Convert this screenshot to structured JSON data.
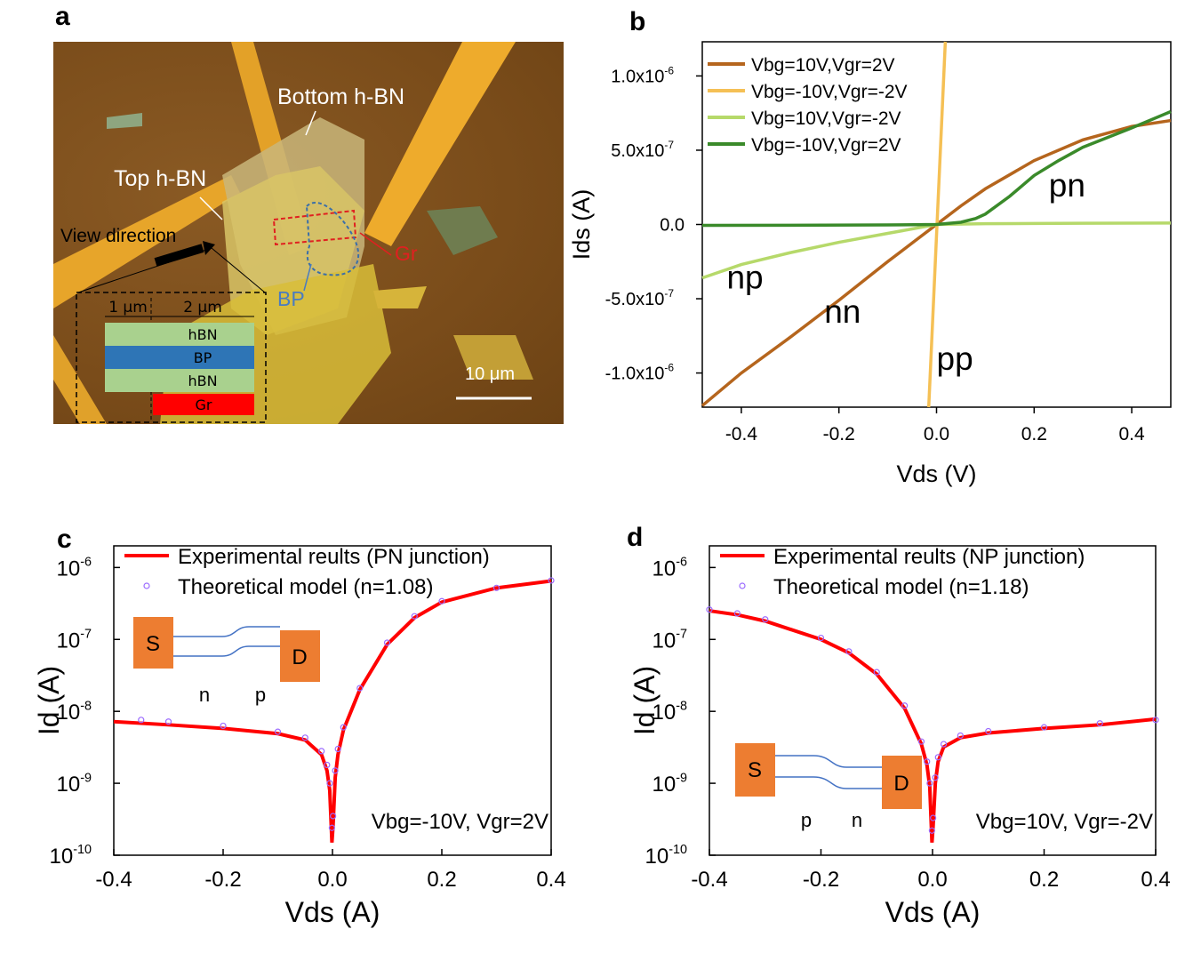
{
  "panels": {
    "a": "a",
    "b": "b",
    "c": "c",
    "d": "d"
  },
  "panel_a": {
    "labels": {
      "bottom_hbn": "Bottom h-BN",
      "top_hbn": "Top h-BN",
      "view_direction": "View direction",
      "gr": "Gr",
      "bp": "BP",
      "scale": "10 μm"
    },
    "schematic": {
      "dim1": "1 μm",
      "dim2": "2 μm",
      "layer1": "hBN",
      "layer2": "BP",
      "layer3": "hBN",
      "layer4": "Gr"
    },
    "colors": {
      "hbn": "#a9d18e",
      "bp": "#2e75b6",
      "gr": "#ff0000"
    }
  },
  "chart_data": [
    {
      "id": "b",
      "type": "line",
      "xlabel": "Vds (V)",
      "ylabel": "Ids (A)",
      "xlim": [
        -0.48,
        0.48
      ],
      "ylim": [
        -1.23e-06,
        1.23e-06
      ],
      "xticks": [
        -0.4,
        -0.2,
        0.0,
        0.2,
        0.4
      ],
      "xtick_labels": [
        "-0.4",
        "-0.2",
        "0.0",
        "0.2",
        "0.4"
      ],
      "yticks": [
        -1e-06,
        -5e-07,
        0,
        5e-07,
        1e-06
      ],
      "ytick_mantissa": [
        "-1.0x10",
        "-5.0x10",
        "0.0",
        "5.0x10",
        "1.0x10"
      ],
      "ytick_exp": [
        "-6",
        "-7",
        "",
        "-7",
        "-6"
      ],
      "series": [
        {
          "name": "Vbg=10V,Vgr=2V",
          "color": "#b5651d",
          "x": [
            -0.48,
            -0.4,
            -0.3,
            -0.2,
            -0.1,
            -0.05,
            0,
            0.05,
            0.1,
            0.2,
            0.3,
            0.4,
            0.48
          ],
          "y": [
            -1.22e-06,
            -1e-06,
            -7.6e-07,
            -5.1e-07,
            -2.5e-07,
            -1.25e-07,
            0,
            1.25e-07,
            2.4e-07,
            4.3e-07,
            5.7e-07,
            6.6e-07,
            7e-07
          ]
        },
        {
          "name": "Vbg=-10V,Vgr=-2V",
          "color": "#f5c055",
          "x": [
            -0.016,
            0.018
          ],
          "y": [
            -1.23e-06,
            1.23e-06
          ]
        },
        {
          "name": "Vbg=10V,Vgr=-2V",
          "color": "#b6d96a",
          "x": [
            -0.48,
            -0.4,
            -0.3,
            -0.2,
            -0.1,
            -0.05,
            0,
            0.1,
            0.2,
            0.3,
            0.4,
            0.48
          ],
          "y": [
            -3.6e-07,
            -2.7e-07,
            -1.9e-07,
            -1.2e-07,
            -6e-08,
            -3e-08,
            0,
            5e-09,
            7e-09,
            8e-09,
            9e-09,
            1e-08
          ]
        },
        {
          "name": "Vbg=-10V,Vgr=2V",
          "color": "#3a8a2a",
          "x": [
            -0.48,
            -0.3,
            -0.1,
            0,
            0.05,
            0.08,
            0.1,
            0.15,
            0.2,
            0.25,
            0.3,
            0.4,
            0.48
          ],
          "y": [
            -6e-09,
            -5e-09,
            -3e-09,
            0,
            1.5e-08,
            4e-08,
            7e-08,
            1.9e-07,
            3.3e-07,
            4.3e-07,
            5.2e-07,
            6.5e-07,
            7.6e-07
          ]
        }
      ],
      "annotations": [
        {
          "text": "np",
          "x": -0.43,
          "y": -4.3e-07
        },
        {
          "text": "nn",
          "x": -0.23,
          "y": -6.6e-07
        },
        {
          "text": "pp",
          "x": 0.0,
          "y": -9.8e-07
        },
        {
          "text": "pn",
          "x": 0.23,
          "y": 1.9e-07
        }
      ]
    },
    {
      "id": "c",
      "type": "scatter",
      "yscale": "log",
      "xlabel": "Vds (A)",
      "ylabel": "Id (A)",
      "xlim": [
        -0.4,
        0.4
      ],
      "ylim": [
        1e-10,
        2e-06
      ],
      "xticks": [
        -0.4,
        -0.2,
        0.0,
        0.2,
        0.4
      ],
      "xtick_labels": [
        "-0.4",
        "-0.2",
        "0.0",
        "0.2",
        "0.4"
      ],
      "yticks": [
        1e-10,
        1e-09,
        1e-08,
        1e-07,
        1e-06
      ],
      "ytick_exp": [
        "-10",
        "-9",
        "-8",
        "-7",
        "-6"
      ],
      "series": [
        {
          "name": "Experimental reults (PN junction)",
          "color": "#ff0000",
          "x": [
            -0.4,
            -0.3,
            -0.2,
            -0.1,
            -0.05,
            -0.02,
            -0.01,
            -0.005,
            -0.001,
            0.001,
            0.005,
            0.01,
            0.02,
            0.05,
            0.1,
            0.15,
            0.2,
            0.3,
            0.4
          ],
          "y": [
            7.2e-09,
            6.5e-09,
            5.8e-09,
            4.9e-09,
            4e-09,
            2.5e-09,
            1.5e-09,
            8e-10,
            1.5e-10,
            2.5e-10,
            1.2e-09,
            2.5e-09,
            5.5e-09,
            2e-08,
            8.5e-08,
            2e-07,
            3.3e-07,
            5.2e-07,
            6.5e-07
          ]
        },
        {
          "name": "Theoretical model (n=1.08)",
          "color": "#9b6bff",
          "x": [
            -0.35,
            -0.3,
            -0.2,
            -0.1,
            -0.05,
            -0.02,
            -0.01,
            -0.005,
            -0.001,
            0.001,
            0.005,
            0.01,
            0.02,
            0.05,
            0.1,
            0.15,
            0.2,
            0.3,
            0.4
          ],
          "y": [
            7.6e-09,
            7.2e-09,
            6.3e-09,
            5.2e-09,
            4.3e-09,
            2.8e-09,
            1.8e-09,
            1e-09,
            2.4e-10,
            3.5e-10,
            1.5e-09,
            3e-09,
            6e-09,
            2.1e-08,
            9e-08,
            2.1e-07,
            3.4e-07,
            5.2e-07,
            6.6e-07
          ]
        }
      ],
      "annotation": "Vbg=-10V, Vgr=2V",
      "inset": {
        "left": "S",
        "right": "D",
        "region1": "n",
        "region2": "p"
      }
    },
    {
      "id": "d",
      "type": "scatter",
      "yscale": "log",
      "xlabel": "Vds (A)",
      "ylabel": "Id (A)",
      "xlim": [
        -0.4,
        0.4
      ],
      "ylim": [
        1e-10,
        2e-06
      ],
      "xticks": [
        -0.4,
        -0.2,
        0.0,
        0.2,
        0.4
      ],
      "xtick_labels": [
        "-0.4",
        "-0.2",
        "0.0",
        "0.2",
        "0.4"
      ],
      "yticks": [
        1e-10,
        1e-09,
        1e-08,
        1e-07,
        1e-06
      ],
      "ytick_exp": [
        "-10",
        "-9",
        "-8",
        "-7",
        "-6"
      ],
      "series": [
        {
          "name": "Experimental reults (NP junction)",
          "color": "#ff0000",
          "x": [
            -0.4,
            -0.35,
            -0.3,
            -0.2,
            -0.15,
            -0.1,
            -0.05,
            -0.02,
            -0.01,
            -0.005,
            -0.001,
            0.001,
            0.005,
            0.01,
            0.02,
            0.05,
            0.1,
            0.2,
            0.3,
            0.4
          ],
          "y": [
            2.5e-07,
            2.2e-07,
            1.8e-07,
            1e-07,
            6.5e-08,
            3.3e-08,
            1.1e-08,
            3.5e-09,
            1.8e-09,
            9e-10,
            1.5e-10,
            2.5e-10,
            1e-09,
            2e-09,
            3.2e-09,
            4.3e-09,
            5e-09,
            5.8e-09,
            6.5e-09,
            7.8e-09
          ]
        },
        {
          "name": "Theoretical model (n=1.18)",
          "color": "#9b6bff",
          "x": [
            -0.4,
            -0.35,
            -0.3,
            -0.2,
            -0.15,
            -0.1,
            -0.05,
            -0.02,
            -0.01,
            -0.005,
            -0.001,
            0.001,
            0.005,
            0.01,
            0.02,
            0.05,
            0.1,
            0.2,
            0.3,
            0.4
          ],
          "y": [
            2.6e-07,
            2.3e-07,
            1.9e-07,
            1.05e-07,
            6.8e-08,
            3.5e-08,
            1.2e-08,
            3.8e-09,
            2e-09,
            1e-09,
            2.2e-10,
            3.3e-10,
            1.2e-09,
            2.3e-09,
            3.5e-09,
            4.6e-09,
            5.3e-09,
            6e-09,
            6.8e-09,
            7.6e-09
          ]
        }
      ],
      "annotation": "Vbg=10V, Vgr=-2V",
      "inset": {
        "left": "S",
        "right": "D",
        "region1": "p",
        "region2": "n"
      }
    }
  ]
}
